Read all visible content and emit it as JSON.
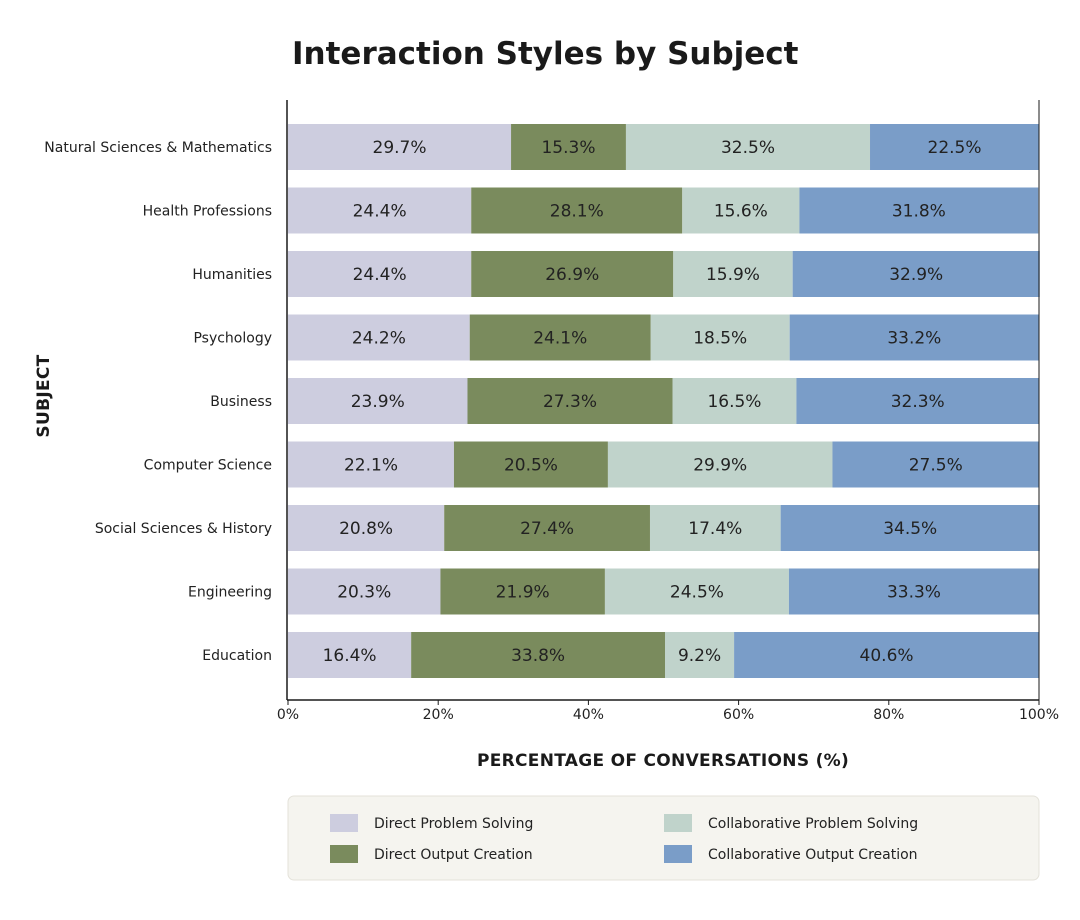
{
  "chart_data": {
    "type": "bar",
    "orientation": "horizontal",
    "stacked": true,
    "title": "Interaction Styles by Subject",
    "xlabel": "PERCENTAGE OF CONVERSATIONS (%)",
    "ylabel": "SUBJECT",
    "xlim": [
      0,
      100
    ],
    "x_ticks": [
      "0%",
      "20%",
      "40%",
      "60%",
      "80%",
      "100%"
    ],
    "x_tick_values": [
      0,
      20,
      40,
      60,
      80,
      100
    ],
    "grid": false,
    "legend_position": "bottom",
    "categories": [
      "Natural Sciences & Mathematics",
      "Health Professions",
      "Humanities",
      "Psychology",
      "Business",
      "Computer Science",
      "Social Sciences & History",
      "Engineering",
      "Education"
    ],
    "series": [
      {
        "name": "Direct Problem Solving",
        "color": "#cdcddf",
        "values": [
          29.7,
          24.4,
          24.4,
          24.2,
          23.9,
          22.1,
          20.8,
          20.3,
          16.4
        ]
      },
      {
        "name": "Direct Output Creation",
        "color": "#7a8b5d",
        "values": [
          15.3,
          28.1,
          26.9,
          24.1,
          27.3,
          20.5,
          27.4,
          21.9,
          33.8
        ]
      },
      {
        "name": "Collaborative Problem Solving",
        "color": "#c0d3cb",
        "values": [
          32.5,
          15.6,
          15.9,
          18.5,
          16.5,
          29.9,
          17.4,
          24.5,
          9.2
        ]
      },
      {
        "name": "Collaborative Output Creation",
        "color": "#7a9dc8",
        "values": [
          22.5,
          31.8,
          32.9,
          33.2,
          32.3,
          27.5,
          34.5,
          33.3,
          40.6
        ]
      }
    ],
    "value_labels": [
      [
        "29.7%",
        "15.3%",
        "32.5%",
        "22.5%"
      ],
      [
        "24.4%",
        "28.1%",
        "15.6%",
        "31.8%"
      ],
      [
        "24.4%",
        "26.9%",
        "15.9%",
        "32.9%"
      ],
      [
        "24.2%",
        "24.1%",
        "18.5%",
        "33.2%"
      ],
      [
        "23.9%",
        "27.3%",
        "16.5%",
        "32.3%"
      ],
      [
        "22.1%",
        "20.5%",
        "29.9%",
        "27.5%"
      ],
      [
        "20.8%",
        "27.4%",
        "17.4%",
        "34.5%"
      ],
      [
        "20.3%",
        "21.9%",
        "24.5%",
        "33.3%"
      ],
      [
        "16.4%",
        "33.8%",
        "9.2%",
        "40.6%"
      ]
    ]
  },
  "legend": {
    "background": "#f5f4ef",
    "border": "#e4e2da"
  },
  "colors": {
    "axis": "#1a1a1a",
    "text": "#222222"
  }
}
